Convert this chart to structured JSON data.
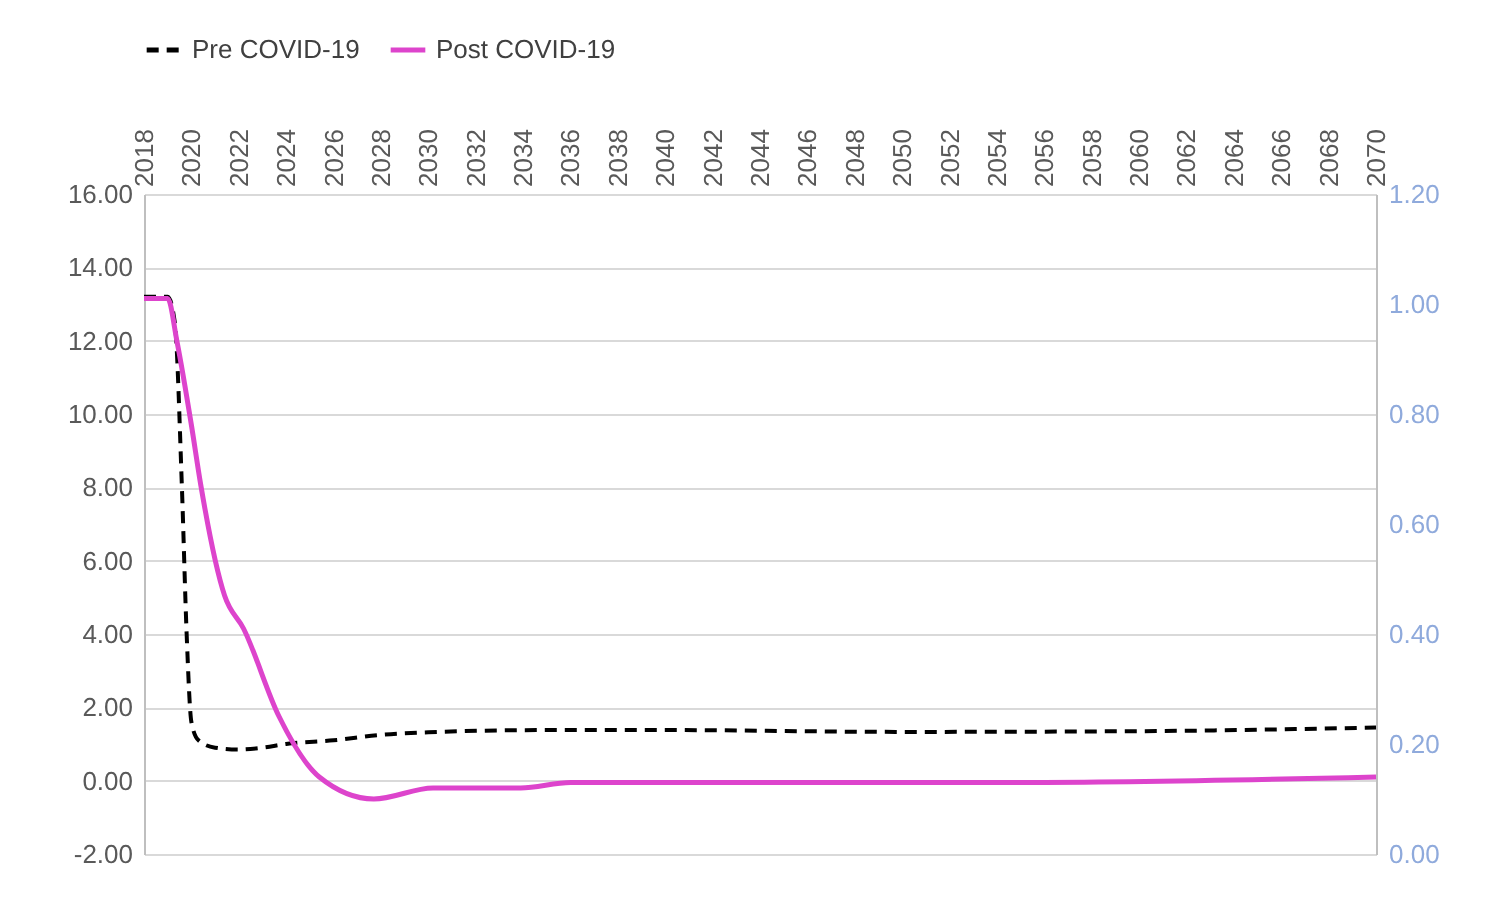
{
  "chart_data": {
    "type": "line",
    "xlim": [
      2018,
      2070
    ],
    "xticks": [
      2018,
      2020,
      2022,
      2024,
      2026,
      2028,
      2030,
      2032,
      2034,
      2036,
      2038,
      2040,
      2042,
      2044,
      2046,
      2048,
      2050,
      2052,
      2054,
      2056,
      2058,
      2060,
      2062,
      2064,
      2066,
      2068,
      2070
    ],
    "ylim": [
      -2,
      16
    ],
    "yticks": [
      {
        "value": -2,
        "label": "-2.00"
      },
      {
        "value": 0,
        "label": "0.00"
      },
      {
        "value": 2,
        "label": "2.00"
      },
      {
        "value": 4,
        "label": "4.00"
      },
      {
        "value": 6,
        "label": "6.00"
      },
      {
        "value": 8,
        "label": "8.00"
      },
      {
        "value": 10,
        "label": "10.00"
      },
      {
        "value": 12,
        "label": "12.00"
      },
      {
        "value": 14,
        "label": "14.00"
      },
      {
        "value": 16,
        "label": "16.00"
      }
    ],
    "y2lim": [
      0,
      1.2
    ],
    "y2ticks": [
      {
        "value": 0,
        "label": "0.00"
      },
      {
        "value": 0.2,
        "label": "0.20"
      },
      {
        "value": 0.4,
        "label": "0.40"
      },
      {
        "value": 0.6,
        "label": "0.60"
      },
      {
        "value": 0.8,
        "label": "0.80"
      },
      {
        "value": 1,
        "label": "1.00"
      },
      {
        "value": 1.2,
        "label": "1.20"
      }
    ],
    "grid": "y",
    "legend": "top",
    "series": [
      {
        "name": "Pre COVID-19",
        "color": "#000000",
        "line_style": "dashed",
        "x": [
          2018,
          2019,
          2019.3,
          2019.6,
          2019.8,
          2020,
          2020.3,
          2021,
          2022,
          2023,
          2024,
          2026,
          2028,
          2030,
          2035,
          2040,
          2050,
          2060,
          2070
        ],
        "values": [
          13.2,
          13.2,
          12.5,
          8,
          4,
          1.6,
          1.1,
          0.9,
          0.85,
          0.9,
          1.0,
          1.1,
          1.25,
          1.32,
          1.38,
          1.38,
          1.33,
          1.35,
          1.45
        ]
      },
      {
        "name": "Post COVID-19",
        "color": "#dd44cc",
        "line_style": "solid",
        "axis": "y2",
        "x": [
          2018,
          2019,
          2019.4,
          2020,
          2020.4,
          2021.4,
          2022.2,
          2023.7,
          2025.4,
          2027.7,
          2030.2,
          2033.9,
          2036,
          2045,
          2055,
          2070
        ],
        "values": [
          1.01,
          1.01,
          0.93,
          0.78,
          0.67,
          0.47,
          0.41,
          0.25,
          0.14,
          0.1,
          0.12,
          0.12,
          0.13,
          0.13,
          0.13,
          0.14
        ]
      }
    ]
  }
}
